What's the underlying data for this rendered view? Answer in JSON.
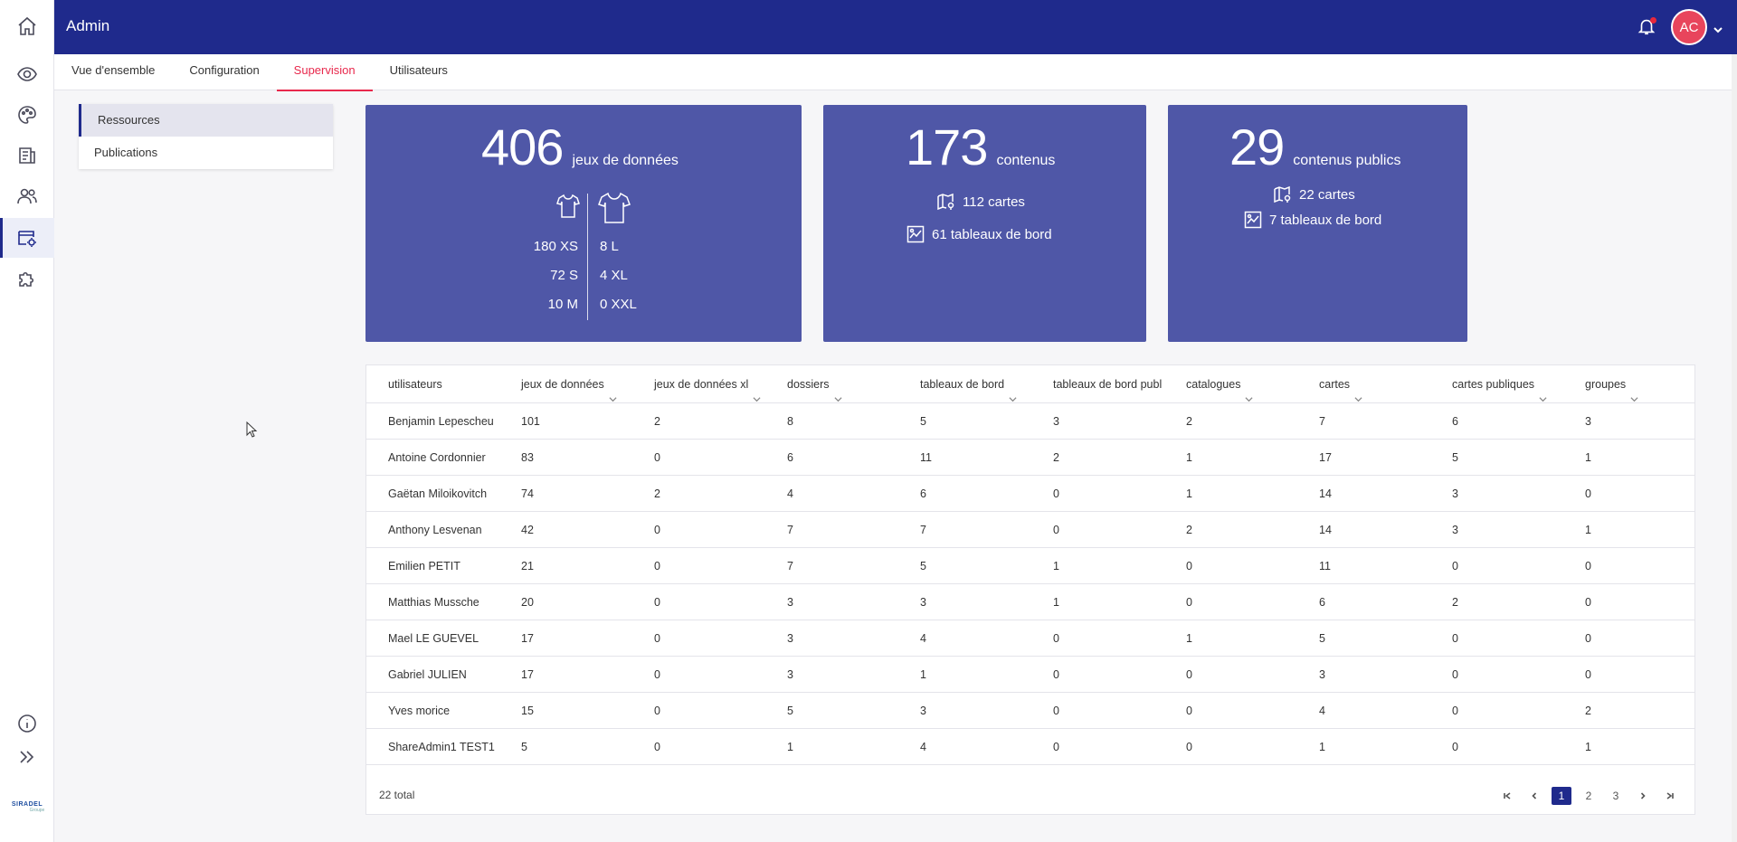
{
  "app": {
    "title": "Admin"
  },
  "header": {
    "avatar_initials": "AC"
  },
  "rail": {
    "icons": [
      "home-icon",
      "eye-network-icon",
      "palette-icon",
      "catalog-icon",
      "users-icon",
      "admin-settings-icon",
      "puzzle-icon",
      "info-icon",
      "expand-icon"
    ]
  },
  "logo": {
    "text1": "SIRADEL",
    "text2": "Groupe"
  },
  "tabs": [
    {
      "label": "Vue d'ensemble"
    },
    {
      "label": "Configuration"
    },
    {
      "label": "Supervision"
    },
    {
      "label": "Utilisateurs"
    }
  ],
  "sidemenu": [
    {
      "label": "Ressources"
    },
    {
      "label": "Publications"
    }
  ],
  "cards": {
    "datasets": {
      "value": "406",
      "label": "jeux de données",
      "sizes_left": [
        "180 XS",
        "72 S",
        "10 M"
      ],
      "sizes_right": [
        "8 L",
        "4 XL",
        "0 XXL"
      ]
    },
    "contents": {
      "value": "173",
      "label": "contenus",
      "maps": "112 cartes",
      "dashboards": "61 tableaux de bord"
    },
    "public": {
      "value": "29",
      "label": "contenus publics",
      "maps": "22 cartes",
      "dashboards": "7 tableaux de bord"
    }
  },
  "table": {
    "columns": [
      "utilisateurs",
      "jeux de données",
      "jeux de données xl",
      "dossiers",
      "tableaux de bord",
      "tableaux de bord publ",
      "catalogues",
      "cartes",
      "cartes publiques",
      "groupes"
    ],
    "sortable": [
      false,
      true,
      true,
      true,
      true,
      false,
      true,
      true,
      true,
      true
    ],
    "rows": [
      [
        "Benjamin Lepescheu",
        "101",
        "2",
        "8",
        "5",
        "3",
        "2",
        "7",
        "6",
        "3"
      ],
      [
        "Antoine Cordonnier",
        "83",
        "0",
        "6",
        "11",
        "2",
        "1",
        "17",
        "5",
        "1"
      ],
      [
        "Gaëtan Miloikovitch",
        "74",
        "2",
        "4",
        "6",
        "0",
        "1",
        "14",
        "3",
        "0"
      ],
      [
        "Anthony Lesvenan",
        "42",
        "0",
        "7",
        "7",
        "0",
        "2",
        "14",
        "3",
        "1"
      ],
      [
        "Emilien PETIT",
        "21",
        "0",
        "7",
        "5",
        "1",
        "0",
        "11",
        "0",
        "0"
      ],
      [
        "Matthias Mussche",
        "20",
        "0",
        "3",
        "3",
        "1",
        "0",
        "6",
        "2",
        "0"
      ],
      [
        "Mael LE GUEVEL",
        "17",
        "0",
        "3",
        "4",
        "0",
        "1",
        "5",
        "0",
        "0"
      ],
      [
        "Gabriel JULIEN",
        "17",
        "0",
        "3",
        "1",
        "0",
        "0",
        "3",
        "0",
        "0"
      ],
      [
        "Yves morice",
        "15",
        "0",
        "5",
        "3",
        "0",
        "0",
        "4",
        "0",
        "2"
      ],
      [
        "ShareAdmin1 TEST1",
        "5",
        "0",
        "1",
        "4",
        "0",
        "0",
        "1",
        "0",
        "1"
      ]
    ],
    "total": "22 total",
    "pages": [
      "1",
      "2",
      "3"
    ],
    "current_page": "1"
  },
  "colors": {
    "primary": "#1f2a8c",
    "card": "#4f57a7",
    "accent": "#e8284c"
  }
}
